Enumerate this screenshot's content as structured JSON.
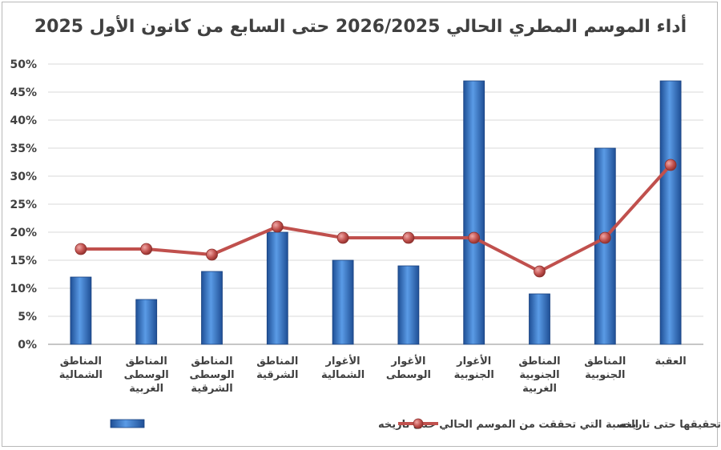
{
  "chart_data": {
    "type": "bar",
    "title": "أداء الموسم المطري الحالي 2026/2025 حتى السابع من كانون الأول 2025",
    "categories": [
      [
        "المناطق",
        "الشمالية"
      ],
      [
        "المناطق",
        "الوسطى",
        "الغربية"
      ],
      [
        "المناطق",
        "الوسطى",
        "الشرقية"
      ],
      [
        "المناطق",
        "الشرقية"
      ],
      [
        "الأغوار",
        "الشمالية"
      ],
      [
        "الأغوار",
        "الوسطى"
      ],
      [
        "الأغوار",
        "الجنوبية"
      ],
      [
        "المناطق",
        "الجنوبية",
        "الغربية"
      ],
      [
        "المناطق",
        "الجنوبية"
      ],
      [
        "العقبة"
      ]
    ],
    "y_ticks": [
      "0%",
      "5%",
      "10%",
      "15%",
      "20%",
      "25%",
      "30%",
      "35%",
      "40%",
      "45%",
      "50%"
    ],
    "ylim": [
      0,
      50
    ],
    "grid": true,
    "legend_position": "bottom",
    "series": [
      {
        "name": "النسبة التي تحققت من الموسم الحالي حتى تاريخه",
        "type": "bar",
        "color": "#3f7fcf",
        "values": [
          12,
          8,
          13,
          20,
          15,
          14,
          47,
          9,
          35,
          47
        ]
      },
      {
        "name": "النسبة المفترض تحقيقها حتى تاريخه",
        "type": "line",
        "color": "#c0504d",
        "values": [
          17,
          17,
          16,
          21,
          19,
          19,
          19,
          13,
          19,
          32
        ]
      }
    ]
  }
}
